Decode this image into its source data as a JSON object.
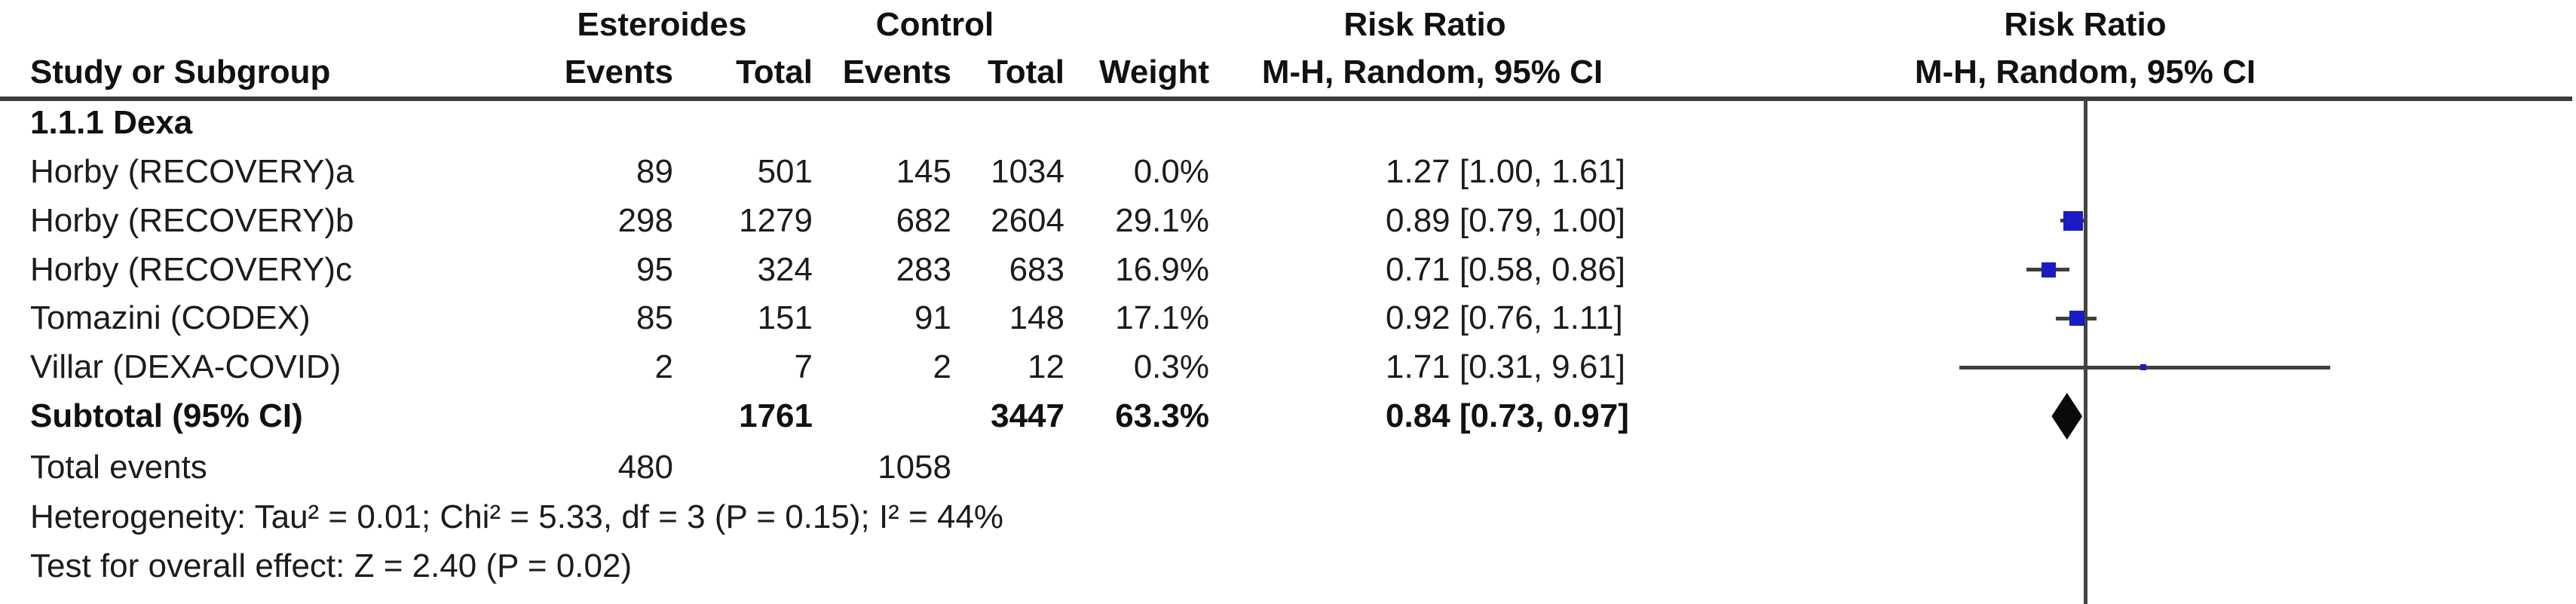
{
  "header": {
    "group1": "Esteroides",
    "group2": "Control",
    "effect_left": "Risk Ratio",
    "effect_right": "Risk Ratio",
    "col_study": "Study or Subgroup",
    "col_events1": "Events",
    "col_total1": "Total",
    "col_events2": "Events",
    "col_total2": "Total",
    "col_weight": "Weight",
    "col_ci_left": "M-H, Random, 95% CI",
    "col_ci_right": "M-H, Random, 95% CI"
  },
  "table": {
    "subgroup_label": "1.1.1 Dexa",
    "rows": [
      {
        "study": "Horby (RECOVERY)a",
        "events1": "89",
        "total1": "501",
        "events2": "145",
        "total2": "1034",
        "weight": "0.0%",
        "ci_text": "1.27 [1.00, 1.61]"
      },
      {
        "study": "Horby (RECOVERY)b",
        "events1": "298",
        "total1": "1279",
        "events2": "682",
        "total2": "2604",
        "weight": "29.1%",
        "ci_text": "0.89 [0.79, 1.00]"
      },
      {
        "study": "Horby (RECOVERY)c",
        "events1": "95",
        "total1": "324",
        "events2": "283",
        "total2": "683",
        "weight": "16.9%",
        "ci_text": "0.71 [0.58, 0.86]"
      },
      {
        "study": "Tomazini (CODEX)",
        "events1": "85",
        "total1": "151",
        "events2": "91",
        "total2": "148",
        "weight": "17.1%",
        "ci_text": "0.92 [0.76, 1.11]"
      },
      {
        "study": "Villar (DEXA-COVID)",
        "events1": "2",
        "total1": "7",
        "events2": "2",
        "total2": "12",
        "weight": "0.3%",
        "ci_text": "1.71 [0.31, 9.61]"
      }
    ],
    "subtotal": {
      "label": "Subtotal (95% CI)",
      "total1": "1761",
      "total2": "3447",
      "weight": "63.3%",
      "ci_text": "0.84 [0.73, 0.97]"
    },
    "total_events": {
      "label": "Total events",
      "events1": "480",
      "events2": "1058"
    },
    "heterogeneity": "Heterogeneity: Tau² = 0.01; Chi² = 5.33, df = 3 (P = 0.15); I² = 44%",
    "overall_effect": "Test for overall effect: Z = 2.40 (P = 0.02)"
  },
  "chart_data": {
    "type": "forest",
    "effect_measure": "Risk Ratio (M-H, Random, 95% CI)",
    "subgroup": "1.1.1 Dexa",
    "studies": [
      {
        "name": "Horby (RECOVERY)a",
        "rr": 1.27,
        "ci_low": 1.0,
        "ci_high": 1.61,
        "weight_pct": 0.0,
        "plotted": false
      },
      {
        "name": "Horby (RECOVERY)b",
        "rr": 0.89,
        "ci_low": 0.79,
        "ci_high": 1.0,
        "weight_pct": 29.1,
        "plotted": true
      },
      {
        "name": "Horby (RECOVERY)c",
        "rr": 0.71,
        "ci_low": 0.58,
        "ci_high": 0.86,
        "weight_pct": 16.9,
        "plotted": true
      },
      {
        "name": "Tomazini (CODEX)",
        "rr": 0.92,
        "ci_low": 0.76,
        "ci_high": 1.11,
        "weight_pct": 17.1,
        "plotted": true
      },
      {
        "name": "Villar (DEXA-COVID)",
        "rr": 1.71,
        "ci_low": 0.31,
        "ci_high": 9.61,
        "weight_pct": 0.3,
        "plotted": true
      }
    ],
    "subtotal": {
      "rr": 0.84,
      "ci_low": 0.73,
      "ci_high": 0.97,
      "weight_pct": 63.3
    },
    "scale": "log",
    "null_line": 1.0,
    "grid": false,
    "colors": {
      "marker_blue": "#1b1bc3",
      "diamond_black": "#0a0a0a",
      "line_gray": "#3f3f3f"
    }
  }
}
